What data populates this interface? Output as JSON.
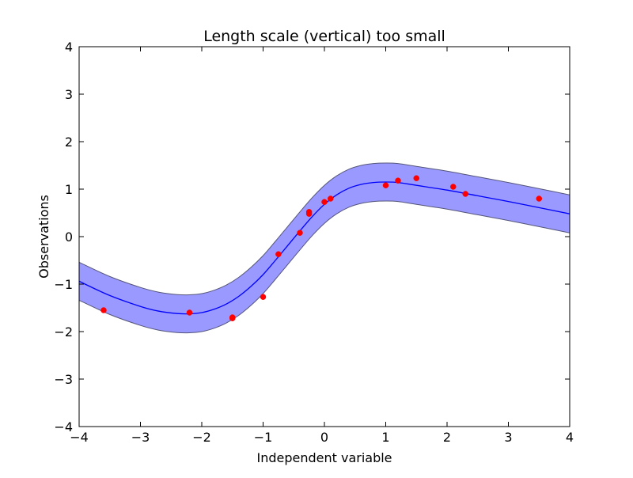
{
  "chart_data": {
    "type": "line",
    "title": "Length scale (vertical) too small",
    "xlabel": "Independent variable",
    "ylabel": "Observations",
    "xlim": [
      -4,
      4
    ],
    "ylim": [
      -4,
      4
    ],
    "xticks": [
      -4,
      -3,
      -2,
      -1,
      0,
      1,
      2,
      3,
      4
    ],
    "yticks": [
      -4,
      -3,
      -2,
      -1,
      0,
      1,
      2,
      3,
      4
    ],
    "xtick_labels": [
      "−4",
      "−3",
      "−2",
      "−1",
      "0",
      "1",
      "2",
      "3",
      "4"
    ],
    "ytick_labels": [
      "−4",
      "−3",
      "−2",
      "−1",
      "0",
      "1",
      "2",
      "3",
      "4"
    ],
    "grid": false,
    "legend": "none",
    "series": [
      {
        "kind": "mean-line",
        "x": [
          -4.0,
          -3.5,
          -3.0,
          -2.7,
          -2.4,
          -2.2,
          -2.0,
          -1.8,
          -1.6,
          -1.4,
          -1.2,
          -1.0,
          -0.8,
          -0.6,
          -0.4,
          -0.2,
          0.0,
          0.2,
          0.4,
          0.6,
          0.8,
          1.0,
          1.2,
          1.5,
          2.0,
          2.5,
          3.0,
          3.5,
          4.0
        ],
        "y": [
          -0.94,
          -1.24,
          -1.47,
          -1.57,
          -1.62,
          -1.625,
          -1.6,
          -1.53,
          -1.42,
          -1.26,
          -1.05,
          -0.8,
          -0.5,
          -0.19,
          0.12,
          0.42,
          0.68,
          0.88,
          1.02,
          1.1,
          1.14,
          1.15,
          1.14,
          1.08,
          0.98,
          0.86,
          0.74,
          0.61,
          0.48
        ],
        "color": "#0000ff"
      },
      {
        "kind": "confidence-band",
        "x": [
          -4.0,
          -3.5,
          -3.0,
          -2.7,
          -2.4,
          -2.2,
          -2.0,
          -1.8,
          -1.6,
          -1.4,
          -1.2,
          -1.0,
          -0.8,
          -0.6,
          -0.4,
          -0.2,
          0.0,
          0.2,
          0.4,
          0.6,
          0.8,
          1.0,
          1.2,
          1.5,
          2.0,
          2.5,
          3.0,
          3.5,
          4.0
        ],
        "upper": [
          -0.54,
          -0.84,
          -1.07,
          -1.17,
          -1.22,
          -1.225,
          -1.2,
          -1.13,
          -1.02,
          -0.86,
          -0.65,
          -0.4,
          -0.1,
          0.21,
          0.52,
          0.82,
          1.08,
          1.28,
          1.42,
          1.5,
          1.54,
          1.55,
          1.54,
          1.48,
          1.38,
          1.26,
          1.14,
          1.01,
          0.88
        ],
        "lower": [
          -1.34,
          -1.64,
          -1.87,
          -1.97,
          -2.02,
          -2.025,
          -2.0,
          -1.93,
          -1.82,
          -1.66,
          -1.45,
          -1.2,
          -0.9,
          -0.59,
          -0.28,
          0.02,
          0.28,
          0.48,
          0.62,
          0.7,
          0.74,
          0.75,
          0.74,
          0.68,
          0.58,
          0.46,
          0.34,
          0.21,
          0.08
        ],
        "fill_color": "#9999ff",
        "edge_color": "#55557a"
      },
      {
        "kind": "observations",
        "x": [
          -3.6,
          -2.2,
          -1.5,
          -1.5,
          -1.0,
          -0.75,
          -0.4,
          -0.25,
          -0.25,
          0.0,
          0.1,
          1.0,
          1.2,
          1.5,
          2.1,
          2.3,
          3.5
        ],
        "y": [
          -1.55,
          -1.6,
          -1.7,
          -1.72,
          -1.27,
          -0.37,
          0.08,
          0.48,
          0.52,
          0.73,
          0.8,
          1.08,
          1.18,
          1.23,
          1.05,
          0.9,
          0.8
        ],
        "color": "#ff0000"
      }
    ]
  }
}
